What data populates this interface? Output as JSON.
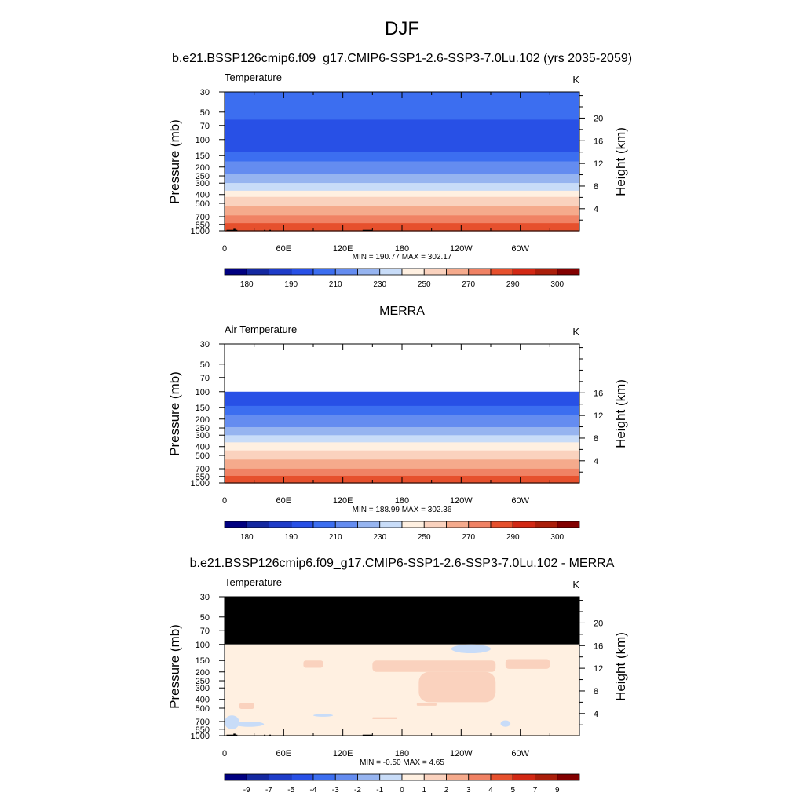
{
  "figure": {
    "title": "DJF",
    "colors": {
      "temp_levels": [
        "#000080",
        "#1428a0",
        "#1e3cc8",
        "#2850e6",
        "#3c6ef0",
        "#648cf0",
        "#96b4f0",
        "#c8dcf8",
        "#fff0e1",
        "#fad2be",
        "#f5aa8c",
        "#f08264",
        "#e6502d",
        "#d22814",
        "#aa1e0a",
        "#820000"
      ],
      "diff_levels": [
        "#000080",
        "#1428a0",
        "#1e3cc8",
        "#2850e6",
        "#3c6ef0",
        "#648cf0",
        "#96b4f0",
        "#c8dcf8",
        "#fff0e1",
        "#fad2be",
        "#f5aa8c",
        "#f08264",
        "#e6502d",
        "#d22814",
        "#aa1e0a",
        "#820000"
      ],
      "missing": "#000000"
    }
  },
  "panels": [
    {
      "id": "model",
      "heading": "b.e21.BSSP126cmip6.f09_g17.CMIP6-SSP1-2.6-SSP3-7.0Lu.102 (yrs 2035-2059)",
      "left_label": "Temperature",
      "units": "K",
      "ylabel": "Pressure (mb)",
      "y2label": "Height (km)",
      "min_max": "MIN = 190.77  MAX = 302.17"
    },
    {
      "id": "obs",
      "heading": "MERRA",
      "left_label": "Air Temperature",
      "units": "K",
      "ylabel": "Pressure (mb)",
      "y2label": "Height (km)",
      "min_max": "MIN = 188.99  MAX = 302.36"
    },
    {
      "id": "diff",
      "heading": "b.e21.BSSP126cmip6.f09_g17.CMIP6-SSP1-2.6-SSP3-7.0Lu.102 - MERRA",
      "left_label": "Temperature",
      "units": "K",
      "ylabel": "Pressure (mb)",
      "y2label": "Height (km)",
      "min_max": "MIN =  -0.50  MAX =   4.65"
    }
  ],
  "chart_data": [
    {
      "type": "heatmap",
      "title": "b.e21.BSSP126cmip6.f09_g17.CMIP6-SSP1-2.6-SSP3-7.0Lu.102 (yrs 2035-2059)",
      "variable": "Temperature",
      "units": "K",
      "xlabel": "",
      "ylabel": "Pressure (mb)",
      "y2label": "Height (km)",
      "x_ticks": [
        "0",
        "60E",
        "120E",
        "180",
        "120W",
        "60W"
      ],
      "x_tick_values": [
        0,
        60,
        120,
        180,
        240,
        300
      ],
      "xlim": [
        0,
        360
      ],
      "y_ticks": [
        30,
        50,
        70,
        100,
        150,
        200,
        250,
        300,
        400,
        500,
        700,
        850,
        1000
      ],
      "ylim": [
        30,
        1000
      ],
      "y2_ticks": [
        4,
        8,
        12,
        16,
        20
      ],
      "colorbar_labels": [
        "180",
        "190",
        "210",
        "230",
        "250",
        "270",
        "290",
        "300"
      ],
      "levels": [
        175,
        180,
        185,
        190,
        200,
        210,
        220,
        230,
        240,
        250,
        260,
        270,
        280,
        290,
        295,
        300
      ],
      "profile": [
        [
          30,
          208
        ],
        [
          40,
          204
        ],
        [
          60,
          200
        ],
        [
          100,
          196
        ],
        [
          120,
          196
        ],
        [
          150,
          205
        ],
        [
          180,
          212
        ],
        [
          200,
          215
        ],
        [
          250,
          222
        ],
        [
          300,
          232
        ],
        [
          400,
          248
        ],
        [
          500,
          258
        ],
        [
          600,
          265
        ],
        [
          700,
          272
        ],
        [
          800,
          279
        ],
        [
          850,
          282
        ],
        [
          925,
          288
        ],
        [
          1000,
          292
        ]
      ],
      "missing_data": [
        {
          "lon": [
            2,
            11
          ],
          "p_top": 975
        },
        {
          "lon": [
            9,
            11
          ],
          "p_top": 950
        },
        {
          "lon": [
            11,
            13
          ],
          "p_top": 975
        },
        {
          "lon": [
            40,
            41.5
          ],
          "p_top": 975
        },
        {
          "lon": [
            45.5,
            47
          ],
          "p_top": 975
        },
        {
          "lon": [
            140,
            150
          ],
          "p_top": 975
        }
      ],
      "min": 190.77,
      "max": 302.17
    },
    {
      "type": "heatmap",
      "title": "MERRA",
      "variable": "Air Temperature",
      "units": "K",
      "xlabel": "",
      "ylabel": "Pressure (mb)",
      "y2label": "Height (km)",
      "x_ticks": [
        "0",
        "60E",
        "120E",
        "180",
        "120W",
        "60W"
      ],
      "x_tick_values": [
        0,
        60,
        120,
        180,
        240,
        300
      ],
      "xlim": [
        0,
        360
      ],
      "y_ticks": [
        30,
        50,
        70,
        100,
        150,
        200,
        250,
        300,
        400,
        500,
        700,
        850,
        1000
      ],
      "ylim": [
        30,
        1000
      ],
      "y2_ticks": [
        4,
        8,
        12,
        16
      ],
      "colorbar_labels": [
        "180",
        "190",
        "210",
        "230",
        "250",
        "270",
        "290",
        "300"
      ],
      "levels": [
        175,
        180,
        185,
        190,
        200,
        210,
        220,
        230,
        240,
        250,
        260,
        270,
        280,
        290,
        295,
        300
      ],
      "profile": [
        [
          100,
          194
        ],
        [
          120,
          194
        ],
        [
          150,
          203
        ],
        [
          180,
          211
        ],
        [
          200,
          214
        ],
        [
          250,
          221
        ],
        [
          300,
          231
        ],
        [
          400,
          247
        ],
        [
          500,
          257
        ],
        [
          600,
          264
        ],
        [
          700,
          271
        ],
        [
          800,
          278
        ],
        [
          850,
          281
        ],
        [
          925,
          287
        ],
        [
          1000,
          291
        ]
      ],
      "data_top_pressure": 100,
      "min": 188.99,
      "max": 302.36
    },
    {
      "type": "heatmap",
      "title": "b.e21.BSSP126cmip6.f09_g17.CMIP6-SSP1-2.6-SSP3-7.0Lu.102 - MERRA",
      "variable": "Temperature",
      "units": "K",
      "xlabel": "",
      "ylabel": "Pressure (mb)",
      "y2label": "Height (km)",
      "x_ticks": [
        "0",
        "60E",
        "120E",
        "180",
        "120W",
        "60W"
      ],
      "x_tick_values": [
        0,
        60,
        120,
        180,
        240,
        300
      ],
      "xlim": [
        0,
        360
      ],
      "y_ticks": [
        30,
        50,
        70,
        100,
        150,
        200,
        250,
        300,
        400,
        500,
        700,
        850,
        1000
      ],
      "ylim": [
        30,
        1000
      ],
      "y2_ticks": [
        4,
        8,
        12,
        16,
        20
      ],
      "colorbar_labels": [
        "-9",
        "-7",
        "-5",
        "-4",
        "-3",
        "-2",
        "-1",
        "0",
        "1",
        "2",
        "3",
        "4",
        "5",
        "7",
        "9"
      ],
      "levels": [
        -9,
        -7,
        -5,
        -4,
        -3,
        -2,
        -1,
        0,
        1,
        2,
        3,
        4,
        5,
        7,
        9
      ],
      "background_value_range": [
        1,
        2
      ],
      "data_top_pressure": 100,
      "warm_regions_value_range": [
        2,
        3
      ],
      "warm_regions": [
        {
          "lon": [
            80,
            100
          ],
          "p": [
            150,
            180
          ]
        },
        {
          "lon": [
            150,
            275
          ],
          "p": [
            150,
            200
          ]
        },
        {
          "lon": [
            197,
            275
          ],
          "p": [
            200,
            430
          ]
        },
        {
          "lon": [
            285,
            330
          ],
          "p": [
            145,
            185
          ]
        },
        {
          "lon": [
            15,
            30
          ],
          "p": [
            440,
            510
          ]
        },
        {
          "lon": [
            195,
            215
          ],
          "p": [
            440,
            470
          ]
        },
        {
          "lon": [
            150,
            175
          ],
          "p": [
            630,
            660
          ]
        }
      ],
      "cool_regions_value_range": [
        0,
        1
      ],
      "cool_regions": [
        {
          "lon": [
            230,
            270
          ],
          "p": [
            100,
            125
          ]
        },
        {
          "lon": [
            0,
            15
          ],
          "p": [
            600,
            850
          ]
        },
        {
          "lon": [
            10,
            40
          ],
          "p": [
            700,
            800
          ]
        },
        {
          "lon": [
            90,
            110
          ],
          "p": [
            580,
            620
          ]
        },
        {
          "lon": [
            280,
            290
          ],
          "p": [
            680,
            800
          ]
        }
      ],
      "missing_data": [
        {
          "lon": [
            2,
            11
          ],
          "p_top": 975
        },
        {
          "lon": [
            9,
            11
          ],
          "p_top": 950
        },
        {
          "lon": [
            11,
            13
          ],
          "p_top": 975
        },
        {
          "lon": [
            40,
            41.5
          ],
          "p_top": 975
        },
        {
          "lon": [
            45.5,
            47
          ],
          "p_top": 975
        },
        {
          "lon": [
            140,
            150
          ],
          "p_top": 975
        }
      ],
      "min": -0.5,
      "max": 4.65
    }
  ]
}
